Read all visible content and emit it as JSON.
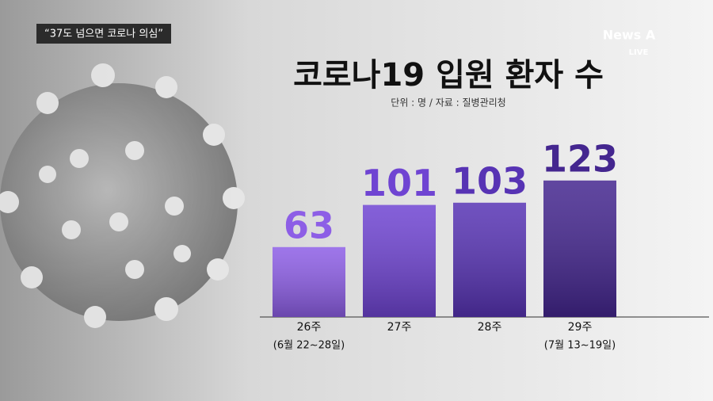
{
  "caption": "“37도 넘으면 코로나 의심”",
  "logo": {
    "brand": "News A",
    "status": "LIVE"
  },
  "chart_data": {
    "type": "bar",
    "title": "코로나19 입원 환자 수",
    "subtitle": "단위 : 명 / 자료 : 질병관리청",
    "categories": [
      "26주",
      "27주",
      "28주",
      "29주"
    ],
    "category_notes": [
      "(6월 22~28일)",
      null,
      null,
      "(7월 13~19일)"
    ],
    "values": [
      63,
      101,
      103,
      123
    ],
    "colors": [
      "#8d5ee6",
      "#6f44d2",
      "#5733b4",
      "#44268f"
    ]
  }
}
